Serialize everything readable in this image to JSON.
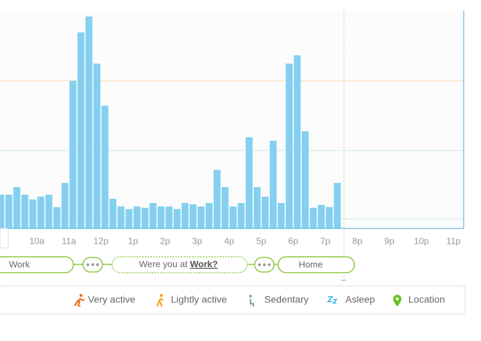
{
  "chart_data": {
    "type": "histogram",
    "bins": [
      8.75,
      9,
      9.25,
      9.5,
      9.75,
      10,
      10.25,
      10.5,
      10.75,
      11,
      11.25,
      11.5,
      11.75,
      12,
      12.25,
      12.5,
      12.75,
      13,
      13.25,
      13.5,
      13.75,
      14,
      14.25,
      14.5,
      14.75,
      15,
      15.25,
      15.5,
      15.75,
      16,
      16.25,
      16.5,
      16.75,
      17,
      17.25,
      17.5,
      17.75,
      18,
      18.25,
      18.5,
      18.75,
      19,
      19.25,
      19.5
    ],
    "values": [
      15.5,
      15.5,
      19.0,
      15.5,
      13.3,
      14.6,
      15.5,
      9.8,
      20.9,
      67.7,
      89.9,
      97.2,
      75.6,
      56.3,
      13.6,
      10.1,
      8.9,
      10.1,
      9.5,
      11.7,
      10.1,
      10.1,
      8.9,
      11.7,
      11.1,
      10.1,
      11.7,
      26.9,
      19.0,
      10.1,
      11.7,
      41.8,
      19.0,
      14.6,
      40.2,
      11.7,
      75.6,
      79.4,
      44.6,
      9.5,
      10.8,
      9.8,
      20.9
    ],
    "color": "#84d0f0",
    "xlim": [
      8.85,
      23.32
    ],
    "ylim": [
      0,
      100
    ],
    "xticks": [
      {
        "value": 10,
        "label": "10a"
      },
      {
        "value": 11,
        "label": "11a"
      },
      {
        "value": 12,
        "label": "12p"
      },
      {
        "value": 13,
        "label": "1p"
      },
      {
        "value": 14,
        "label": "2p"
      },
      {
        "value": 15,
        "label": "3p"
      },
      {
        "value": 16,
        "label": "4p"
      },
      {
        "value": 17,
        "label": "5p"
      },
      {
        "value": 18,
        "label": "6p"
      },
      {
        "value": 19,
        "label": "7p"
      },
      {
        "value": 20,
        "label": "8p"
      },
      {
        "value": 21,
        "label": "9p"
      },
      {
        "value": 22,
        "label": "10p"
      },
      {
        "value": 23,
        "label": "11p"
      }
    ]
  },
  "timeline": {
    "start": "Work",
    "question": "Were you at",
    "question_link": "Work?",
    "end": "Home"
  },
  "legend": [
    "Very active",
    "Lightly active",
    "Sedentary",
    "Asleep",
    "Location"
  ]
}
